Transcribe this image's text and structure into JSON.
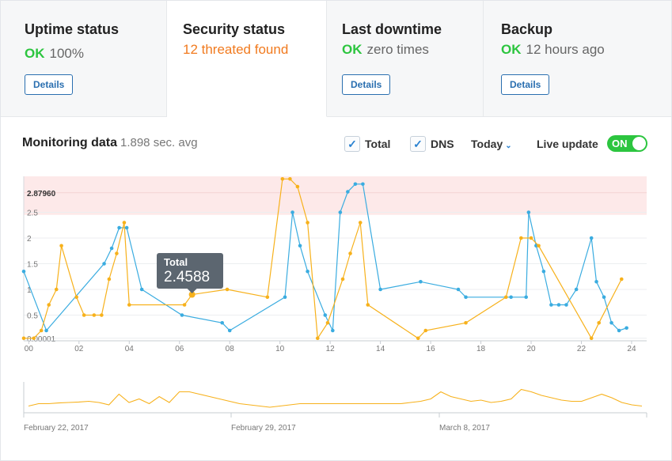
{
  "cards": [
    {
      "title": "Uptime status",
      "ok": "OK",
      "status": "100%",
      "button": "Details"
    },
    {
      "title": "Security status",
      "status": "12 threated found"
    },
    {
      "title": "Last downtime",
      "ok": "OK",
      "status": "zero times",
      "button": "Details"
    },
    {
      "title": "Backup",
      "ok": "OK",
      "status": "12 hours ago",
      "button": "Details"
    }
  ],
  "monitor": {
    "title": "Monitoring data",
    "subtitle": "1.898 sec. avg",
    "checks": [
      {
        "label": "Total",
        "checked": true
      },
      {
        "label": "DNS",
        "checked": true
      }
    ],
    "range": "Today",
    "live_label": "Live update",
    "live_state": "ON"
  },
  "tooltip": {
    "label": "Total",
    "value": "2.4588"
  },
  "colors": {
    "blue": "#3aace0",
    "orange": "#f7b11b",
    "ok": "#2cc53f",
    "warn": "#f17a1e",
    "threshold": "#fde9e9"
  },
  "chart_data": [
    {
      "type": "line",
      "x_ticks": [
        "00",
        "02",
        "04",
        "06",
        "08",
        "10",
        "12",
        "14",
        "16",
        "18",
        "20",
        "22",
        "24"
      ],
      "y_ticks": [
        "0.00001",
        "0.5",
        "1",
        "1.5",
        "2",
        "2.5"
      ],
      "threshold_label": "2.87960",
      "ylim": [
        0,
        3.2
      ],
      "xlim": [
        -0.2,
        24.6
      ],
      "series": [
        {
          "color": "blue",
          "points": [
            [
              -0.2,
              1.35
            ],
            [
              0.7,
              0.2
            ],
            [
              3,
              1.5
            ],
            [
              3.3,
              1.8
            ],
            [
              3.6,
              2.2
            ],
            [
              3.9,
              2.2
            ],
            [
              4.5,
              1.0
            ],
            [
              6.1,
              0.5
            ],
            [
              7.7,
              0.35
            ],
            [
              8,
              0.2
            ],
            [
              10.2,
              0.85
            ],
            [
              10.5,
              2.5
            ],
            [
              10.8,
              1.85
            ],
            [
              11.1,
              1.35
            ],
            [
              11.8,
              0.5
            ],
            [
              12.1,
              0.2
            ],
            [
              12.4,
              2.5
            ],
            [
              12.7,
              2.9
            ],
            [
              13,
              3.05
            ],
            [
              13.3,
              3.05
            ],
            [
              14,
              1.0
            ],
            [
              15.6,
              1.15
            ],
            [
              17.1,
              1.0
            ],
            [
              17.4,
              0.85
            ],
            [
              19.2,
              0.85
            ],
            [
              19.8,
              0.85
            ],
            [
              19.9,
              2.5
            ],
            [
              20.2,
              1.85
            ],
            [
              20.5,
              1.35
            ],
            [
              20.8,
              0.7
            ],
            [
              21.1,
              0.7
            ],
            [
              21.4,
              0.7
            ],
            [
              21.8,
              1.0
            ],
            [
              22.4,
              2.0
            ],
            [
              22.6,
              1.15
            ],
            [
              22.9,
              0.85
            ],
            [
              23.2,
              0.35
            ],
            [
              23.5,
              0.2
            ],
            [
              23.8,
              0.25
            ]
          ]
        },
        {
          "color": "orange",
          "points": [
            [
              -0.2,
              0.05
            ],
            [
              0.2,
              0.05
            ],
            [
              0.5,
              0.2
            ],
            [
              0.8,
              0.7
            ],
            [
              1.1,
              1.0
            ],
            [
              1.3,
              1.85
            ],
            [
              1.9,
              0.85
            ],
            [
              2.2,
              0.5
            ],
            [
              2.6,
              0.5
            ],
            [
              2.9,
              0.5
            ],
            [
              3.2,
              1.2
            ],
            [
              3.5,
              1.7
            ],
            [
              3.8,
              2.3
            ],
            [
              4,
              0.7
            ],
            [
              6.2,
              0.7
            ],
            [
              6.5,
              0.9
            ],
            [
              7.9,
              1.0
            ],
            [
              9.5,
              0.85
            ],
            [
              10.1,
              3.15
            ],
            [
              10.4,
              3.15
            ],
            [
              10.7,
              3.0
            ],
            [
              11.1,
              2.3
            ],
            [
              11.5,
              0.05
            ],
            [
              11.9,
              0.35
            ],
            [
              12.5,
              1.2
            ],
            [
              12.8,
              1.7
            ],
            [
              13.2,
              2.3
            ],
            [
              13.5,
              0.7
            ],
            [
              15.5,
              0.05
            ],
            [
              15.8,
              0.2
            ],
            [
              17.4,
              0.35
            ],
            [
              19,
              0.85
            ],
            [
              19.6,
              2.0
            ],
            [
              20,
              2.0
            ],
            [
              20.3,
              1.85
            ],
            [
              22.4,
              0.05
            ],
            [
              22.7,
              0.35
            ],
            [
              23.6,
              1.2
            ]
          ]
        }
      ]
    },
    {
      "type": "line",
      "x_labels": [
        "February 22, 2017",
        "February 29, 2017",
        "March 8, 2017"
      ],
      "series": [
        {
          "color": "orange",
          "values": [
            0.15,
            0.25,
            0.25,
            0.28,
            0.3,
            0.32,
            0.35,
            0.3,
            0.2,
            0.65,
            0.3,
            0.45,
            0.25,
            0.55,
            0.3,
            0.75,
            0.75,
            0.65,
            0.55,
            0.45,
            0.35,
            0.25,
            0.2,
            0.15,
            0.1,
            0.15,
            0.2,
            0.25,
            0.25,
            0.25,
            0.25,
            0.25,
            0.25,
            0.25,
            0.25,
            0.25,
            0.25,
            0.25,
            0.3,
            0.35,
            0.45,
            0.75,
            0.55,
            0.45,
            0.35,
            0.4,
            0.3,
            0.35,
            0.45,
            0.85,
            0.75,
            0.6,
            0.5,
            0.4,
            0.35,
            0.35,
            0.5,
            0.65,
            0.5,
            0.3,
            0.2,
            0.15
          ]
        }
      ]
    }
  ]
}
